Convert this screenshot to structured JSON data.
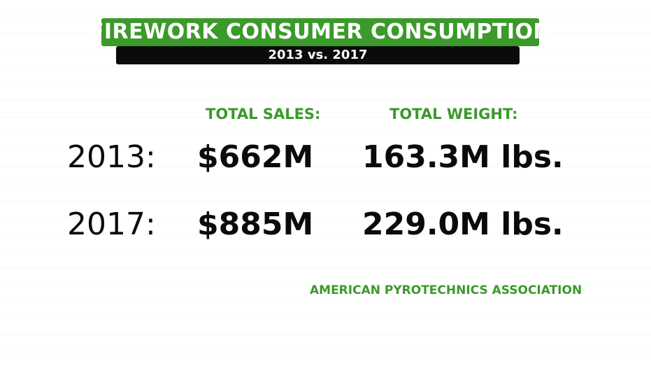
{
  "header": {
    "title": "FIREWORK CONSUMER CONSUMPTION",
    "subtitle": "2013 vs. 2017"
  },
  "table": {
    "columns": {
      "sales": "TOTAL SALES:",
      "weight": "TOTAL WEIGHT:"
    },
    "rows": [
      {
        "year": "2013:",
        "sales": "$662M",
        "weight": "163.3M lbs."
      },
      {
        "year": "2017:",
        "sales": "$885M",
        "weight": "229.0M lbs."
      }
    ]
  },
  "source": "AMERICAN PYROTECHNICS ASSOCIATION",
  "colors": {
    "accent_green": "#3a9a2a",
    "text_black": "#0b0b0b",
    "background": "#ffffff"
  }
}
